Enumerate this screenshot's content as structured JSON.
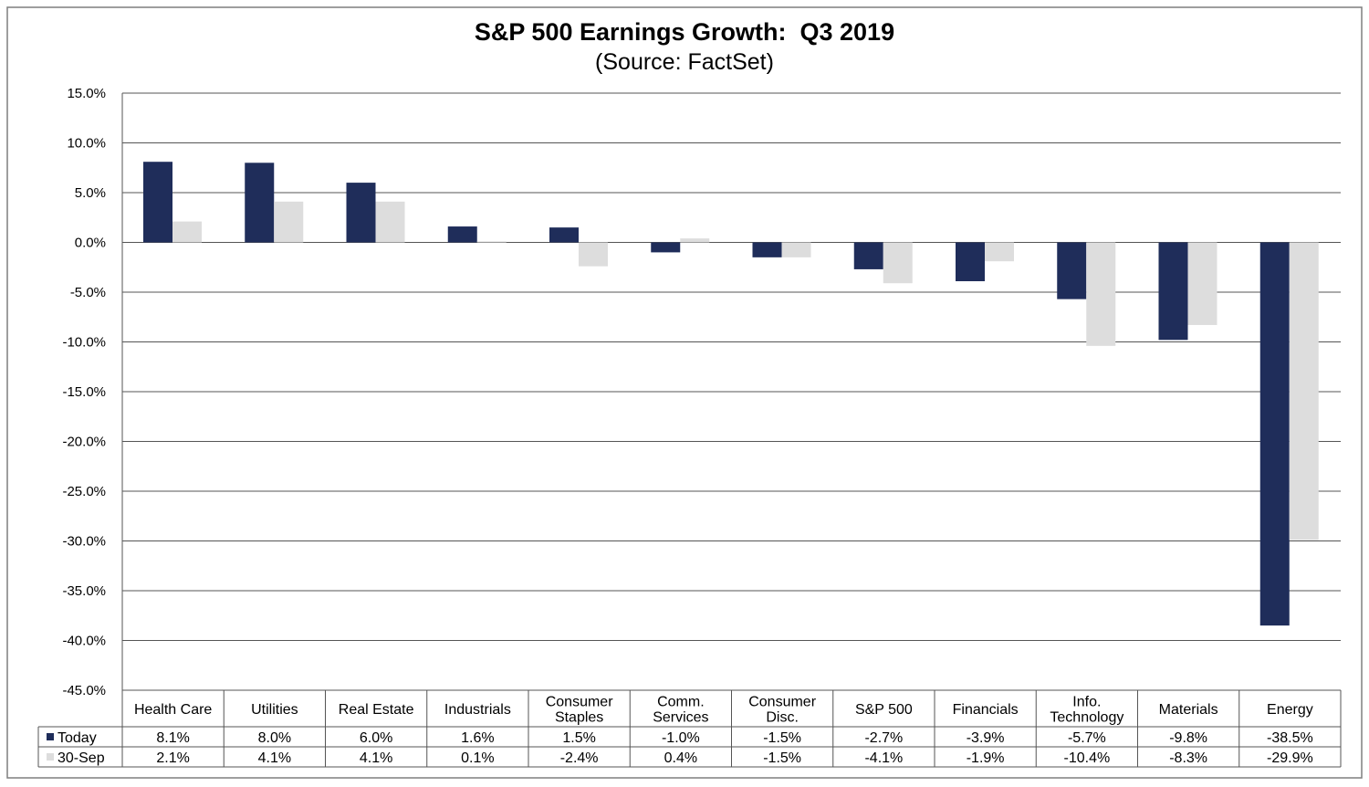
{
  "chart_data": {
    "type": "bar",
    "title": "S&P 500 Earnings Growth:  Q3 2019",
    "subtitle": "(Source: FactSet)",
    "categories": [
      [
        "Health Care"
      ],
      [
        "Utilities"
      ],
      [
        "Real Estate"
      ],
      [
        "Industrials"
      ],
      [
        "Consumer",
        "Staples"
      ],
      [
        "Comm.",
        "Services"
      ],
      [
        "Consumer",
        "Disc."
      ],
      [
        "S&P 500"
      ],
      [
        "Financials"
      ],
      [
        "Info.",
        "Technology"
      ],
      [
        "Materials"
      ],
      [
        "Energy"
      ]
    ],
    "series": [
      {
        "name": "Today",
        "color": "#1f2d5a",
        "values": [
          8.1,
          8.0,
          6.0,
          1.6,
          1.5,
          -1.0,
          -1.5,
          -2.7,
          -3.9,
          -5.7,
          -9.8,
          -38.5
        ],
        "labels": [
          "8.1%",
          "8.0%",
          "6.0%",
          "1.6%",
          "1.5%",
          "-1.0%",
          "-1.5%",
          "-2.7%",
          "-3.9%",
          "-5.7%",
          "-9.8%",
          "-38.5%"
        ]
      },
      {
        "name": "30-Sep",
        "color": "#dddddd",
        "values": [
          2.1,
          4.1,
          4.1,
          0.1,
          -2.4,
          0.4,
          -1.5,
          -4.1,
          -1.9,
          -10.4,
          -8.3,
          -29.9
        ],
        "labels": [
          "2.1%",
          "4.1%",
          "4.1%",
          "0.1%",
          "-2.4%",
          "0.4%",
          "-1.5%",
          "-4.1%",
          "-1.9%",
          "-10.4%",
          "-8.3%",
          "-29.9%"
        ]
      }
    ],
    "ylim": [
      -45,
      15
    ],
    "yticks": [
      15,
      10,
      5,
      0,
      -5,
      -10,
      -15,
      -20,
      -25,
      -30,
      -35,
      -40,
      -45
    ],
    "ytick_labels": [
      "15.0%",
      "10.0%",
      "5.0%",
      "0.0%",
      "-5.0%",
      "-10.0%",
      "-15.0%",
      "-20.0%",
      "-25.0%",
      "-30.0%",
      "-35.0%",
      "-40.0%",
      "-45.0%"
    ],
    "grid": true,
    "legend": "data-table"
  }
}
